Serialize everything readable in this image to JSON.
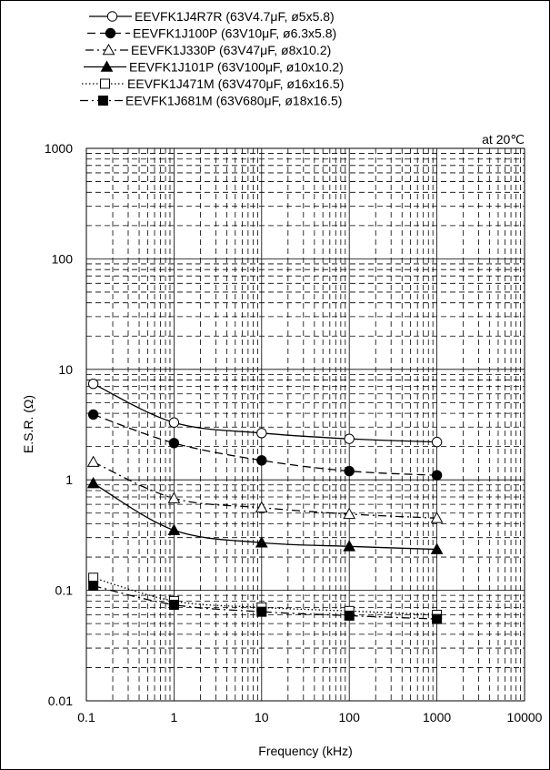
{
  "chart_data": {
    "type": "line",
    "annotation": "at 20℃",
    "xlabel": "Frequency (kHz)",
    "ylabel": "E.S.R. (Ω)",
    "x_scale": "log",
    "y_scale": "log",
    "xlim": [
      0.1,
      10000
    ],
    "ylim": [
      0.01,
      1000
    ],
    "x_ticks": [
      "0.1",
      "1",
      "10",
      "100",
      "1000",
      "10000"
    ],
    "y_ticks": [
      "0.01",
      "0.1",
      "1",
      "10",
      "100",
      "1000"
    ],
    "grid": true,
    "legend_position": "top",
    "x": [
      0.12,
      1,
      10,
      100,
      1000
    ],
    "series": [
      {
        "name": "EEVFK1J4R7R (63V4.7μF, ø5x5.8)",
        "marker": "circle-open",
        "line": "solid",
        "values": [
          7.4,
          3.3,
          2.65,
          2.35,
          2.2
        ]
      },
      {
        "name": "EEVFK1J100P (63V10μF, ø6.3x5.8)",
        "marker": "circle-filled",
        "line": "dashed",
        "values": [
          3.9,
          2.15,
          1.5,
          1.2,
          1.1
        ]
      },
      {
        "name": "EEVFK1J330P (63V47μF, ø8x10.2)",
        "marker": "triangle-open",
        "line": "dashdot",
        "values": [
          1.45,
          0.68,
          0.56,
          0.49,
          0.45
        ]
      },
      {
        "name": "EEVFK1J101P (63V100μF, ø10x10.2)",
        "marker": "triangle-filled",
        "line": "solid",
        "values": [
          0.93,
          0.35,
          0.27,
          0.25,
          0.235
        ]
      },
      {
        "name": "EEVFK1J471M (63V470μF, ø16x16.5)",
        "marker": "square-open",
        "line": "dotted",
        "values": [
          0.13,
          0.08,
          0.07,
          0.065,
          0.06
        ]
      },
      {
        "name": "EEVFK1J681M (63V680μF, ø18x16.5)",
        "marker": "square-filled",
        "line": "dashdot",
        "values": [
          0.11,
          0.074,
          0.064,
          0.059,
          0.055
        ]
      }
    ]
  }
}
